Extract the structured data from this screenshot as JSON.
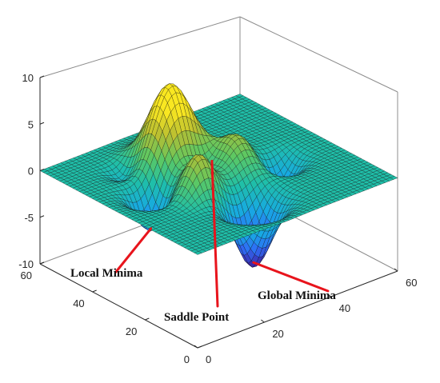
{
  "chart_data": {
    "type": "surface",
    "title": "",
    "xlabel": "",
    "ylabel": "",
    "zlabel": "",
    "x_ticks": [
      "0",
      "20",
      "40",
      "60"
    ],
    "y_ticks": [
      "0",
      "20",
      "40",
      "60"
    ],
    "z_ticks": [
      "10",
      "5",
      "0",
      "-5",
      "-10"
    ],
    "xlim": [
      0,
      60
    ],
    "ylim": [
      0,
      60
    ],
    "zlim": [
      -10,
      10
    ],
    "grid_size": 49,
    "colormap": [
      "#3e26a8",
      "#2f6cf6",
      "#17a9e3",
      "#1fbfa9",
      "#5cc863",
      "#b7bd32",
      "#f9e721"
    ],
    "edge_color": "#111111",
    "surface_peaks": [
      {
        "x": 25,
        "y": 42,
        "z": 8.1
      },
      {
        "x": 20,
        "y": 25,
        "z": 3.7
      },
      {
        "x": 34,
        "y": 30,
        "z": 3.6
      }
    ],
    "surface_valleys": [
      {
        "x": 27,
        "y": 13,
        "z": -6.5
      },
      {
        "x": 45,
        "y": 26,
        "z": -3.0
      }
    ],
    "annotations": [
      {
        "text": "Local Minima",
        "x": 12,
        "y": 33,
        "z": -3.8
      },
      {
        "text": "Saddle Point",
        "x": 24,
        "y": 25,
        "z": 3.0
      },
      {
        "text": "Global Minima",
        "x": 27,
        "y": 13,
        "z": -6.5
      }
    ],
    "annotation_color": "#e8141c",
    "grid": false,
    "box": true
  }
}
